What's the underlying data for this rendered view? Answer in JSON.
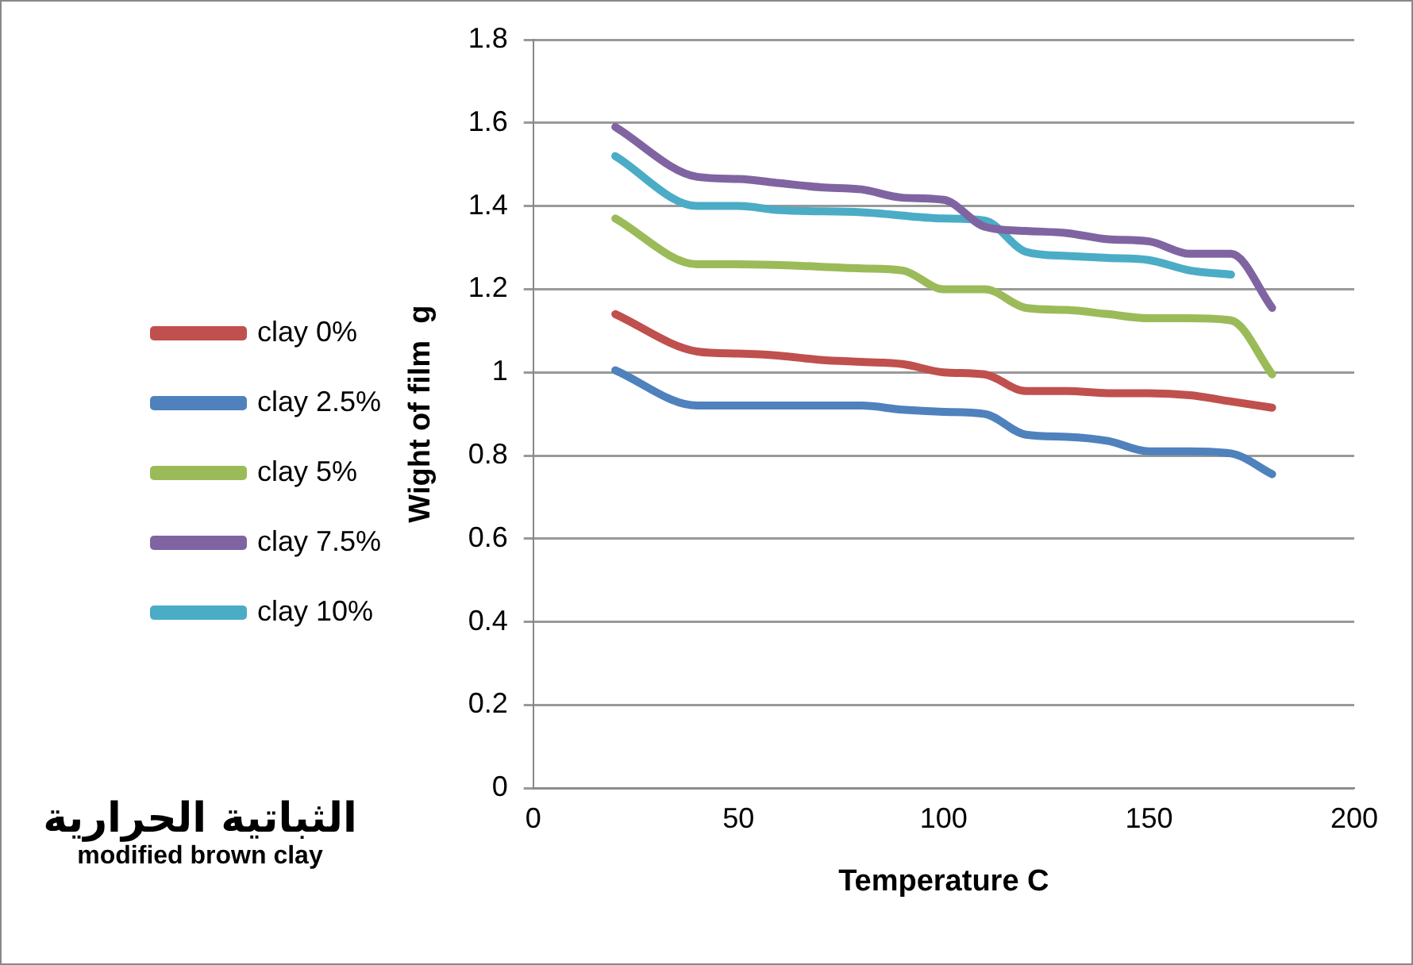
{
  "chart_data": {
    "type": "line",
    "xlabel": "Temperature C",
    "ylabel": "Wight of film  g",
    "xlim": [
      0,
      200
    ],
    "xticks": [
      0,
      50,
      100,
      150,
      200
    ],
    "ylim": [
      0,
      1.8
    ],
    "yticks": [
      0,
      0.2,
      0.4,
      0.6,
      0.8,
      1,
      1.2,
      1.4,
      1.6,
      1.8
    ],
    "grid": "y",
    "legend": "left",
    "marker": "none",
    "line_style": "solid",
    "annotations": [
      "الثباتية الحرارية",
      "modified brown clay"
    ],
    "series": [
      {
        "name": "clay 0%",
        "color": "#c0504d",
        "x": [
          20,
          40,
          50,
          60,
          70,
          80,
          90,
          100,
          110,
          120,
          130,
          140,
          150,
          160,
          170,
          180
        ],
        "values": [
          1.14,
          1.05,
          1.045,
          1.04,
          1.03,
          1.025,
          1.02,
          1.0,
          0.995,
          0.955,
          0.955,
          0.95,
          0.95,
          0.945,
          0.93,
          0.915
        ]
      },
      {
        "name": "clay 2.5%",
        "color": "#4f81bd",
        "x": [
          20,
          40,
          50,
          60,
          80,
          90,
          100,
          110,
          120,
          130,
          140,
          150,
          160,
          170,
          180
        ],
        "values": [
          1.005,
          0.92,
          0.92,
          0.92,
          0.92,
          0.91,
          0.905,
          0.9,
          0.85,
          0.845,
          0.835,
          0.81,
          0.81,
          0.805,
          0.755
        ]
      },
      {
        "name": "clay 5%",
        "color": "#9bbb59",
        "x": [
          20,
          40,
          50,
          60,
          80,
          90,
          100,
          110,
          120,
          130,
          140,
          150,
          160,
          170,
          180
        ],
        "values": [
          1.37,
          1.26,
          1.26,
          1.258,
          1.25,
          1.245,
          1.2,
          1.2,
          1.155,
          1.15,
          1.14,
          1.13,
          1.13,
          1.125,
          0.995
        ]
      },
      {
        "name": "clay 7.5%",
        "color": "#8064a2",
        "x": [
          20,
          40,
          50,
          60,
          70,
          80,
          90,
          100,
          110,
          120,
          130,
          140,
          150,
          160,
          170,
          180
        ],
        "values": [
          1.59,
          1.47,
          1.465,
          1.455,
          1.445,
          1.44,
          1.42,
          1.415,
          1.35,
          1.34,
          1.335,
          1.32,
          1.315,
          1.285,
          1.285,
          1.155
        ]
      },
      {
        "name": "clay 10%",
        "color": "#4bacc6",
        "x": [
          20,
          40,
          50,
          60,
          80,
          100,
          110,
          120,
          130,
          140,
          150,
          160,
          170
        ],
        "values": [
          1.52,
          1.4,
          1.4,
          1.39,
          1.385,
          1.37,
          1.365,
          1.29,
          1.28,
          1.275,
          1.27,
          1.245,
          1.235
        ]
      }
    ]
  }
}
